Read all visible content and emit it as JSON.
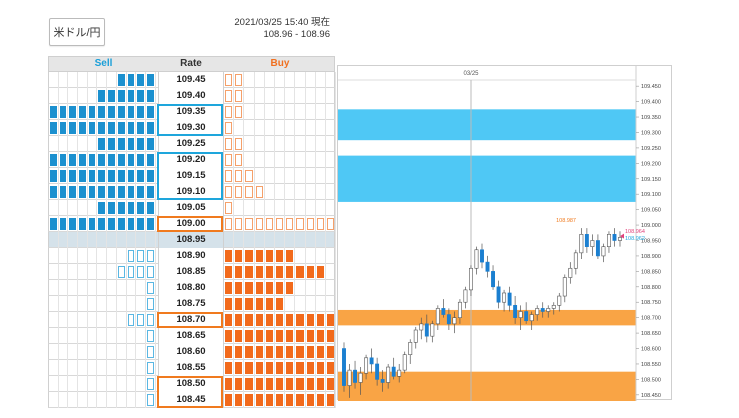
{
  "header": {
    "pair_label": "米ドル/円",
    "timestamp": "2021/03/25 15:40 現在",
    "range": "108.96 - 108.96"
  },
  "table": {
    "headers": {
      "sell": "Sell",
      "rate": "Rate",
      "buy": "Buy"
    },
    "rows": [
      {
        "rate": "109.45",
        "sell": {
          "filled": 4,
          "outline": 0
        },
        "buy": {
          "filled": 0,
          "outline": 2
        }
      },
      {
        "rate": "109.40",
        "sell": {
          "filled": 6,
          "outline": 0
        },
        "buy": {
          "filled": 0,
          "outline": 2
        }
      },
      {
        "rate": "109.35",
        "sell": {
          "filled": 11,
          "outline": 0
        },
        "buy": {
          "filled": 0,
          "outline": 2
        }
      },
      {
        "rate": "109.30",
        "sell": {
          "filled": 11,
          "outline": 0
        },
        "buy": {
          "filled": 0,
          "outline": 1
        }
      },
      {
        "rate": "109.25",
        "sell": {
          "filled": 6,
          "outline": 0
        },
        "buy": {
          "filled": 0,
          "outline": 2
        }
      },
      {
        "rate": "109.20",
        "sell": {
          "filled": 11,
          "outline": 0
        },
        "buy": {
          "filled": 0,
          "outline": 2
        }
      },
      {
        "rate": "109.15",
        "sell": {
          "filled": 11,
          "outline": 0
        },
        "buy": {
          "filled": 0,
          "outline": 3
        }
      },
      {
        "rate": "109.10",
        "sell": {
          "filled": 11,
          "outline": 0
        },
        "buy": {
          "filled": 0,
          "outline": 4
        }
      },
      {
        "rate": "109.05",
        "sell": {
          "filled": 6,
          "outline": 0
        },
        "buy": {
          "filled": 0,
          "outline": 1
        }
      },
      {
        "rate": "109.00",
        "sell": {
          "filled": 11,
          "outline": 0
        },
        "buy": {
          "filled": 0,
          "outline": 11
        }
      },
      {
        "rate": "108.95",
        "sell": {
          "filled": 0,
          "outline": 0
        },
        "buy": {
          "filled": 0,
          "outline": 0
        },
        "center": true
      },
      {
        "rate": "108.90",
        "sell": {
          "filled": 0,
          "outline": 3
        },
        "buy": {
          "filled": 7,
          "outline": 0
        }
      },
      {
        "rate": "108.85",
        "sell": {
          "filled": 0,
          "outline": 4
        },
        "buy": {
          "filled": 10,
          "outline": 0
        }
      },
      {
        "rate": "108.80",
        "sell": {
          "filled": 0,
          "outline": 1
        },
        "buy": {
          "filled": 7,
          "outline": 0
        }
      },
      {
        "rate": "108.75",
        "sell": {
          "filled": 0,
          "outline": 1
        },
        "buy": {
          "filled": 6,
          "outline": 0
        }
      },
      {
        "rate": "108.70",
        "sell": {
          "filled": 0,
          "outline": 3
        },
        "buy": {
          "filled": 11,
          "outline": 0
        }
      },
      {
        "rate": "108.65",
        "sell": {
          "filled": 0,
          "outline": 1
        },
        "buy": {
          "filled": 11,
          "outline": 0
        }
      },
      {
        "rate": "108.60",
        "sell": {
          "filled": 0,
          "outline": 1
        },
        "buy": {
          "filled": 11,
          "outline": 0
        }
      },
      {
        "rate": "108.55",
        "sell": {
          "filled": 0,
          "outline": 1
        },
        "buy": {
          "filled": 11,
          "outline": 0
        }
      },
      {
        "rate": "108.50",
        "sell": {
          "filled": 0,
          "outline": 1
        },
        "buy": {
          "filled": 11,
          "outline": 0
        }
      },
      {
        "rate": "108.45",
        "sell": {
          "filled": 0,
          "outline": 1
        },
        "buy": {
          "filled": 11,
          "outline": 0
        }
      }
    ]
  },
  "highlight_boxes": [
    {
      "from": "109.35",
      "to": "109.30",
      "color": "#1ea6dc"
    },
    {
      "from": "109.20",
      "to": "109.10",
      "color": "#1ea6dc"
    },
    {
      "from": "109.00",
      "to": "109.00",
      "color": "#f07a1e"
    },
    {
      "from": "108.70",
      "to": "108.70",
      "color": "#f07a1e"
    },
    {
      "from": "108.50",
      "to": "108.45",
      "color": "#f07a1e"
    }
  ],
  "colors": {
    "sell": "#1b90cf",
    "sell_outline": "#5ab7e3",
    "buy": "#f26a1b",
    "buy_outline": "#f5a06a",
    "band_blue": "#4fc8f5",
    "band_orange": "#f9a445",
    "candle_up": "#ffffff",
    "candle_down": "#1b7fd0"
  },
  "chart_data": {
    "type": "candlestick",
    "date_label": "03/25",
    "ylim": [
      108.43,
      109.47
    ],
    "yticks": [
      "109.450",
      "109.400",
      "109.350",
      "109.300",
      "109.250",
      "109.200",
      "109.150",
      "109.100",
      "109.050",
      "109.000",
      "108.950",
      "108.900",
      "108.850",
      "108.800",
      "108.750",
      "108.700",
      "108.650",
      "108.600",
      "108.550",
      "108.500",
      "108.450"
    ],
    "bands": [
      {
        "from": 109.275,
        "to": 109.375,
        "color": "#4fc8f5"
      },
      {
        "from": 109.075,
        "to": 109.225,
        "color": "#4fc8f5"
      },
      {
        "from": 108.675,
        "to": 108.725,
        "color": "#f9a445"
      },
      {
        "from": 108.425,
        "to": 108.525,
        "color": "#f9a445"
      }
    ],
    "annotations": {
      "high_label": "108.987",
      "current_bid": "108.964",
      "current_ask": "108.962"
    },
    "candles": [
      [
        108.6,
        108.62,
        108.46,
        108.48
      ],
      [
        108.48,
        108.55,
        108.44,
        108.53
      ],
      [
        108.53,
        108.56,
        108.47,
        108.49
      ],
      [
        108.49,
        108.54,
        108.45,
        108.52
      ],
      [
        108.52,
        108.58,
        108.5,
        108.57
      ],
      [
        108.57,
        108.6,
        108.52,
        108.55
      ],
      [
        108.55,
        108.57,
        108.48,
        108.5
      ],
      [
        108.5,
        108.53,
        108.46,
        108.49
      ],
      [
        108.49,
        108.55,
        108.47,
        108.54
      ],
      [
        108.54,
        108.57,
        108.5,
        108.51
      ],
      [
        108.51,
        108.55,
        108.49,
        108.53
      ],
      [
        108.53,
        108.59,
        108.52,
        108.58
      ],
      [
        108.58,
        108.63,
        108.55,
        108.62
      ],
      [
        108.62,
        108.67,
        108.6,
        108.66
      ],
      [
        108.66,
        108.7,
        108.63,
        108.68
      ],
      [
        108.68,
        108.71,
        108.62,
        108.64
      ],
      [
        108.64,
        108.69,
        108.62,
        108.68
      ],
      [
        108.68,
        108.74,
        108.66,
        108.73
      ],
      [
        108.73,
        108.76,
        108.7,
        108.71
      ],
      [
        108.71,
        108.73,
        108.66,
        108.68
      ],
      [
        108.68,
        108.72,
        108.65,
        108.7
      ],
      [
        108.7,
        108.76,
        108.68,
        108.75
      ],
      [
        108.75,
        108.8,
        108.73,
        108.79
      ],
      [
        108.79,
        108.87,
        108.77,
        108.86
      ],
      [
        108.86,
        108.93,
        108.84,
        108.92
      ],
      [
        108.92,
        108.94,
        108.86,
        108.88
      ],
      [
        108.88,
        108.9,
        108.83,
        108.85
      ],
      [
        108.85,
        108.87,
        108.79,
        108.8
      ],
      [
        108.8,
        108.82,
        108.73,
        108.75
      ],
      [
        108.75,
        108.79,
        108.72,
        108.78
      ],
      [
        108.78,
        108.8,
        108.72,
        108.74
      ],
      [
        108.74,
        108.77,
        108.68,
        108.7
      ],
      [
        108.7,
        108.74,
        108.66,
        108.72
      ],
      [
        108.72,
        108.75,
        108.68,
        108.69
      ],
      [
        108.69,
        108.72,
        108.66,
        108.71
      ],
      [
        108.71,
        108.74,
        108.69,
        108.73
      ],
      [
        108.73,
        108.75,
        108.7,
        108.72
      ],
      [
        108.72,
        108.74,
        108.7,
        108.73
      ],
      [
        108.73,
        108.75,
        108.71,
        108.74
      ],
      [
        108.74,
        108.78,
        108.72,
        108.77
      ],
      [
        108.77,
        108.84,
        108.75,
        108.83
      ],
      [
        108.83,
        108.88,
        108.81,
        108.86
      ],
      [
        108.86,
        108.92,
        108.84,
        108.91
      ],
      [
        108.91,
        108.99,
        108.89,
        108.97
      ],
      [
        108.97,
        108.99,
        108.91,
        108.93
      ],
      [
        108.93,
        108.97,
        108.9,
        108.95
      ],
      [
        108.95,
        108.97,
        108.89,
        108.9
      ],
      [
        108.9,
        108.94,
        108.88,
        108.93
      ],
      [
        108.93,
        108.98,
        108.91,
        108.97
      ],
      [
        108.97,
        108.99,
        108.93,
        108.95
      ],
      [
        108.95,
        108.98,
        108.93,
        108.96
      ]
    ]
  }
}
